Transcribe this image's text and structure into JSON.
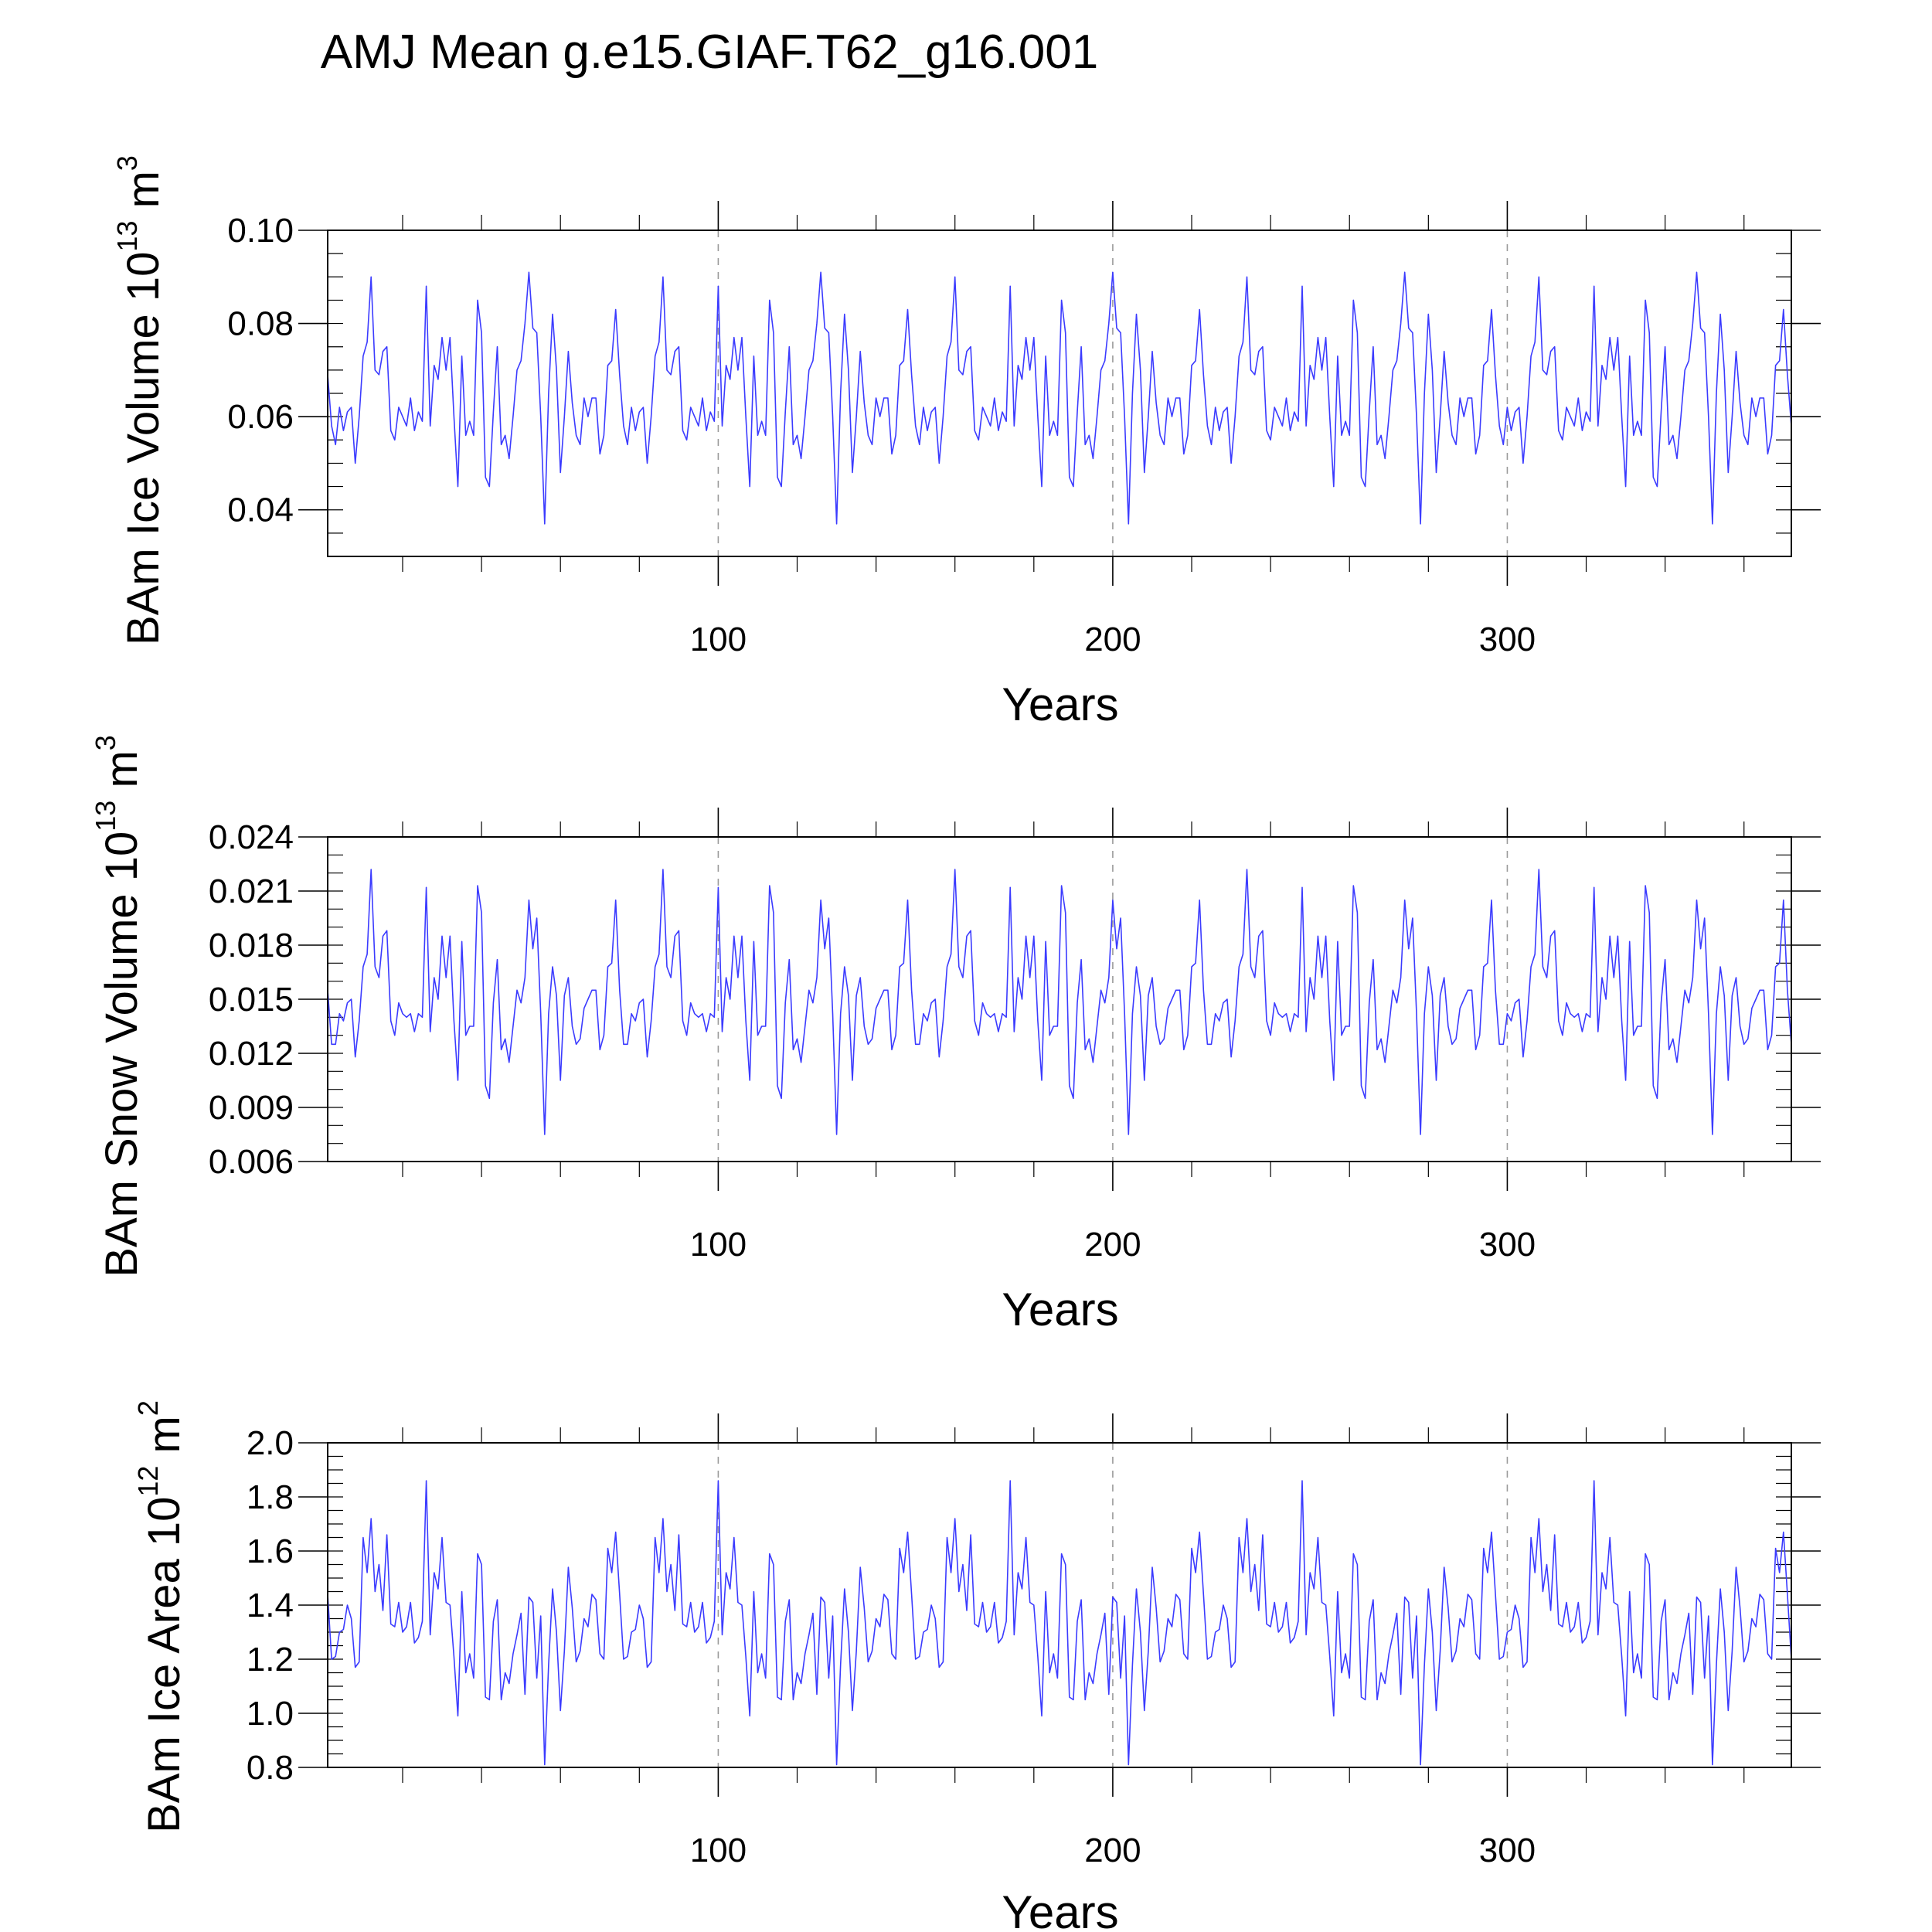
{
  "figure": {
    "title": "AMJ Mean g.e15.GIAF.T62_g16.001",
    "line_color": "#3b3bff",
    "grid_color": "#9a9a9a",
    "axis_color": "#000000"
  },
  "chart_data": [
    {
      "type": "line",
      "name": "ice-volume",
      "ylabel_main": "BAm Ice Volume 10",
      "ylabel_exp": "13",
      "ylabel_unit": " m",
      "ylabel_unit_exp": "3",
      "xlabel": "Years",
      "xlim": [
        1,
        372
      ],
      "ylim": [
        0.03,
        0.1
      ],
      "y_ticks": [
        0.04,
        0.06,
        0.08,
        0.1
      ],
      "y_tick_labels": [
        "0.04",
        "0.06",
        "0.08",
        "0.10"
      ],
      "y_minor_step": 0.005,
      "x_ticks": [
        100,
        200,
        300
      ],
      "x_tick_labels": [
        "100",
        "200",
        "300"
      ],
      "x_minor_step": 20,
      "x_gridlines": [
        100,
        200,
        300
      ],
      "segment": [
        0.069,
        0.058,
        0.054,
        0.062,
        0.057,
        0.061,
        0.062,
        0.05,
        0.06,
        0.073,
        0.076,
        0.09,
        0.07,
        0.069,
        0.074,
        0.075,
        0.057,
        0.055,
        0.062,
        0.06,
        0.058,
        0.064,
        0.057,
        0.061,
        0.059,
        0.088,
        0.058,
        0.071,
        0.068,
        0.077,
        0.07,
        0.077,
        0.06,
        0.045,
        0.073,
        0.056,
        0.059,
        0.056,
        0.085,
        0.078,
        0.047,
        0.045,
        0.061,
        0.075,
        0.054,
        0.056,
        0.051,
        0.06,
        0.07,
        0.072,
        0.08,
        0.091,
        0.079,
        0.078,
        0.06,
        0.037,
        0.065,
        0.082,
        0.07,
        0.048,
        0.06,
        0.074,
        0.063,
        0.056,
        0.054,
        0.064,
        0.06,
        0.064,
        0.064,
        0.052,
        0.056,
        0.071,
        0.072,
        0.083
      ],
      "repeat_to": 372
    },
    {
      "type": "line",
      "name": "snow-volume",
      "ylabel_main": "BAm Snow Volume 10",
      "ylabel_exp": "13",
      "ylabel_unit": " m",
      "ylabel_unit_exp": "3",
      "xlabel": "Years",
      "xlim": [
        1,
        372
      ],
      "ylim": [
        0.006,
        0.024
      ],
      "y_ticks": [
        0.006,
        0.009,
        0.012,
        0.015,
        0.018,
        0.021,
        0.024
      ],
      "y_tick_labels": [
        "0.006",
        "0.009",
        "0.012",
        "0.015",
        "0.018",
        "0.021",
        "0.024"
      ],
      "y_minor_step": 0.001,
      "x_ticks": [
        100,
        200,
        300
      ],
      "x_tick_labels": [
        "100",
        "200",
        "300"
      ],
      "x_minor_step": 20,
      "x_gridlines": [
        100,
        200,
        300
      ],
      "segment": [
        0.0155,
        0.0125,
        0.0125,
        0.0142,
        0.0138,
        0.0148,
        0.015,
        0.0118,
        0.0138,
        0.0168,
        0.0175,
        0.0222,
        0.0168,
        0.0162,
        0.0185,
        0.0188,
        0.0138,
        0.013,
        0.0148,
        0.0142,
        0.014,
        0.0142,
        0.0132,
        0.0142,
        0.014,
        0.0212,
        0.0132,
        0.0162,
        0.015,
        0.0185,
        0.0162,
        0.0185,
        0.0138,
        0.0105,
        0.0182,
        0.013,
        0.0135,
        0.0135,
        0.0213,
        0.0198,
        0.0102,
        0.0095,
        0.0148,
        0.0172,
        0.0122,
        0.0128,
        0.0115,
        0.0135,
        0.0155,
        0.0148,
        0.0162,
        0.0205,
        0.0178,
        0.0195,
        0.0142,
        0.0075,
        0.0142,
        0.0168,
        0.0152,
        0.0105,
        0.0152,
        0.0162,
        0.0135,
        0.0125,
        0.0128,
        0.0145,
        0.015,
        0.0155,
        0.0155,
        0.0122,
        0.013,
        0.0168,
        0.017,
        0.0205
      ],
      "repeat_to": 372
    },
    {
      "type": "line",
      "name": "ice-area",
      "ylabel_main": "BAm Ice Area 10",
      "ylabel_exp": "12",
      "ylabel_unit": " m",
      "ylabel_unit_exp": "2",
      "xlabel": "Years",
      "xlim": [
        1,
        372
      ],
      "ylim": [
        0.8,
        2.0
      ],
      "y_ticks": [
        0.8,
        1.0,
        1.2,
        1.4,
        1.6,
        1.8,
        2.0
      ],
      "y_tick_labels": [
        "0.8",
        "1.0",
        "1.2",
        "1.4",
        "1.6",
        "1.8",
        "2.0"
      ],
      "y_minor_step": 0.05,
      "x_ticks": [
        100,
        200,
        300
      ],
      "x_tick_labels": [
        "100",
        "200",
        "300"
      ],
      "x_minor_step": 20,
      "x_gridlines": [
        100,
        200,
        300
      ],
      "segment": [
        1.44,
        1.2,
        1.21,
        1.3,
        1.31,
        1.4,
        1.35,
        1.17,
        1.19,
        1.65,
        1.52,
        1.72,
        1.45,
        1.55,
        1.38,
        1.66,
        1.33,
        1.32,
        1.41,
        1.3,
        1.32,
        1.41,
        1.26,
        1.28,
        1.34,
        1.86,
        1.29,
        1.52,
        1.46,
        1.65,
        1.41,
        1.4,
        1.21,
        0.99,
        1.45,
        1.15,
        1.22,
        1.13,
        1.59,
        1.55,
        1.06,
        1.05,
        1.34,
        1.42,
        1.05,
        1.15,
        1.11,
        1.22,
        1.29,
        1.37,
        1.07,
        1.43,
        1.41,
        1.13,
        1.36,
        0.81,
        1.18,
        1.46,
        1.3,
        1.01,
        1.23,
        1.54,
        1.39,
        1.19,
        1.23,
        1.35,
        1.32,
        1.44,
        1.42,
        1.22,
        1.2,
        1.61,
        1.52,
        1.67
      ],
      "repeat_to": 372
    }
  ]
}
